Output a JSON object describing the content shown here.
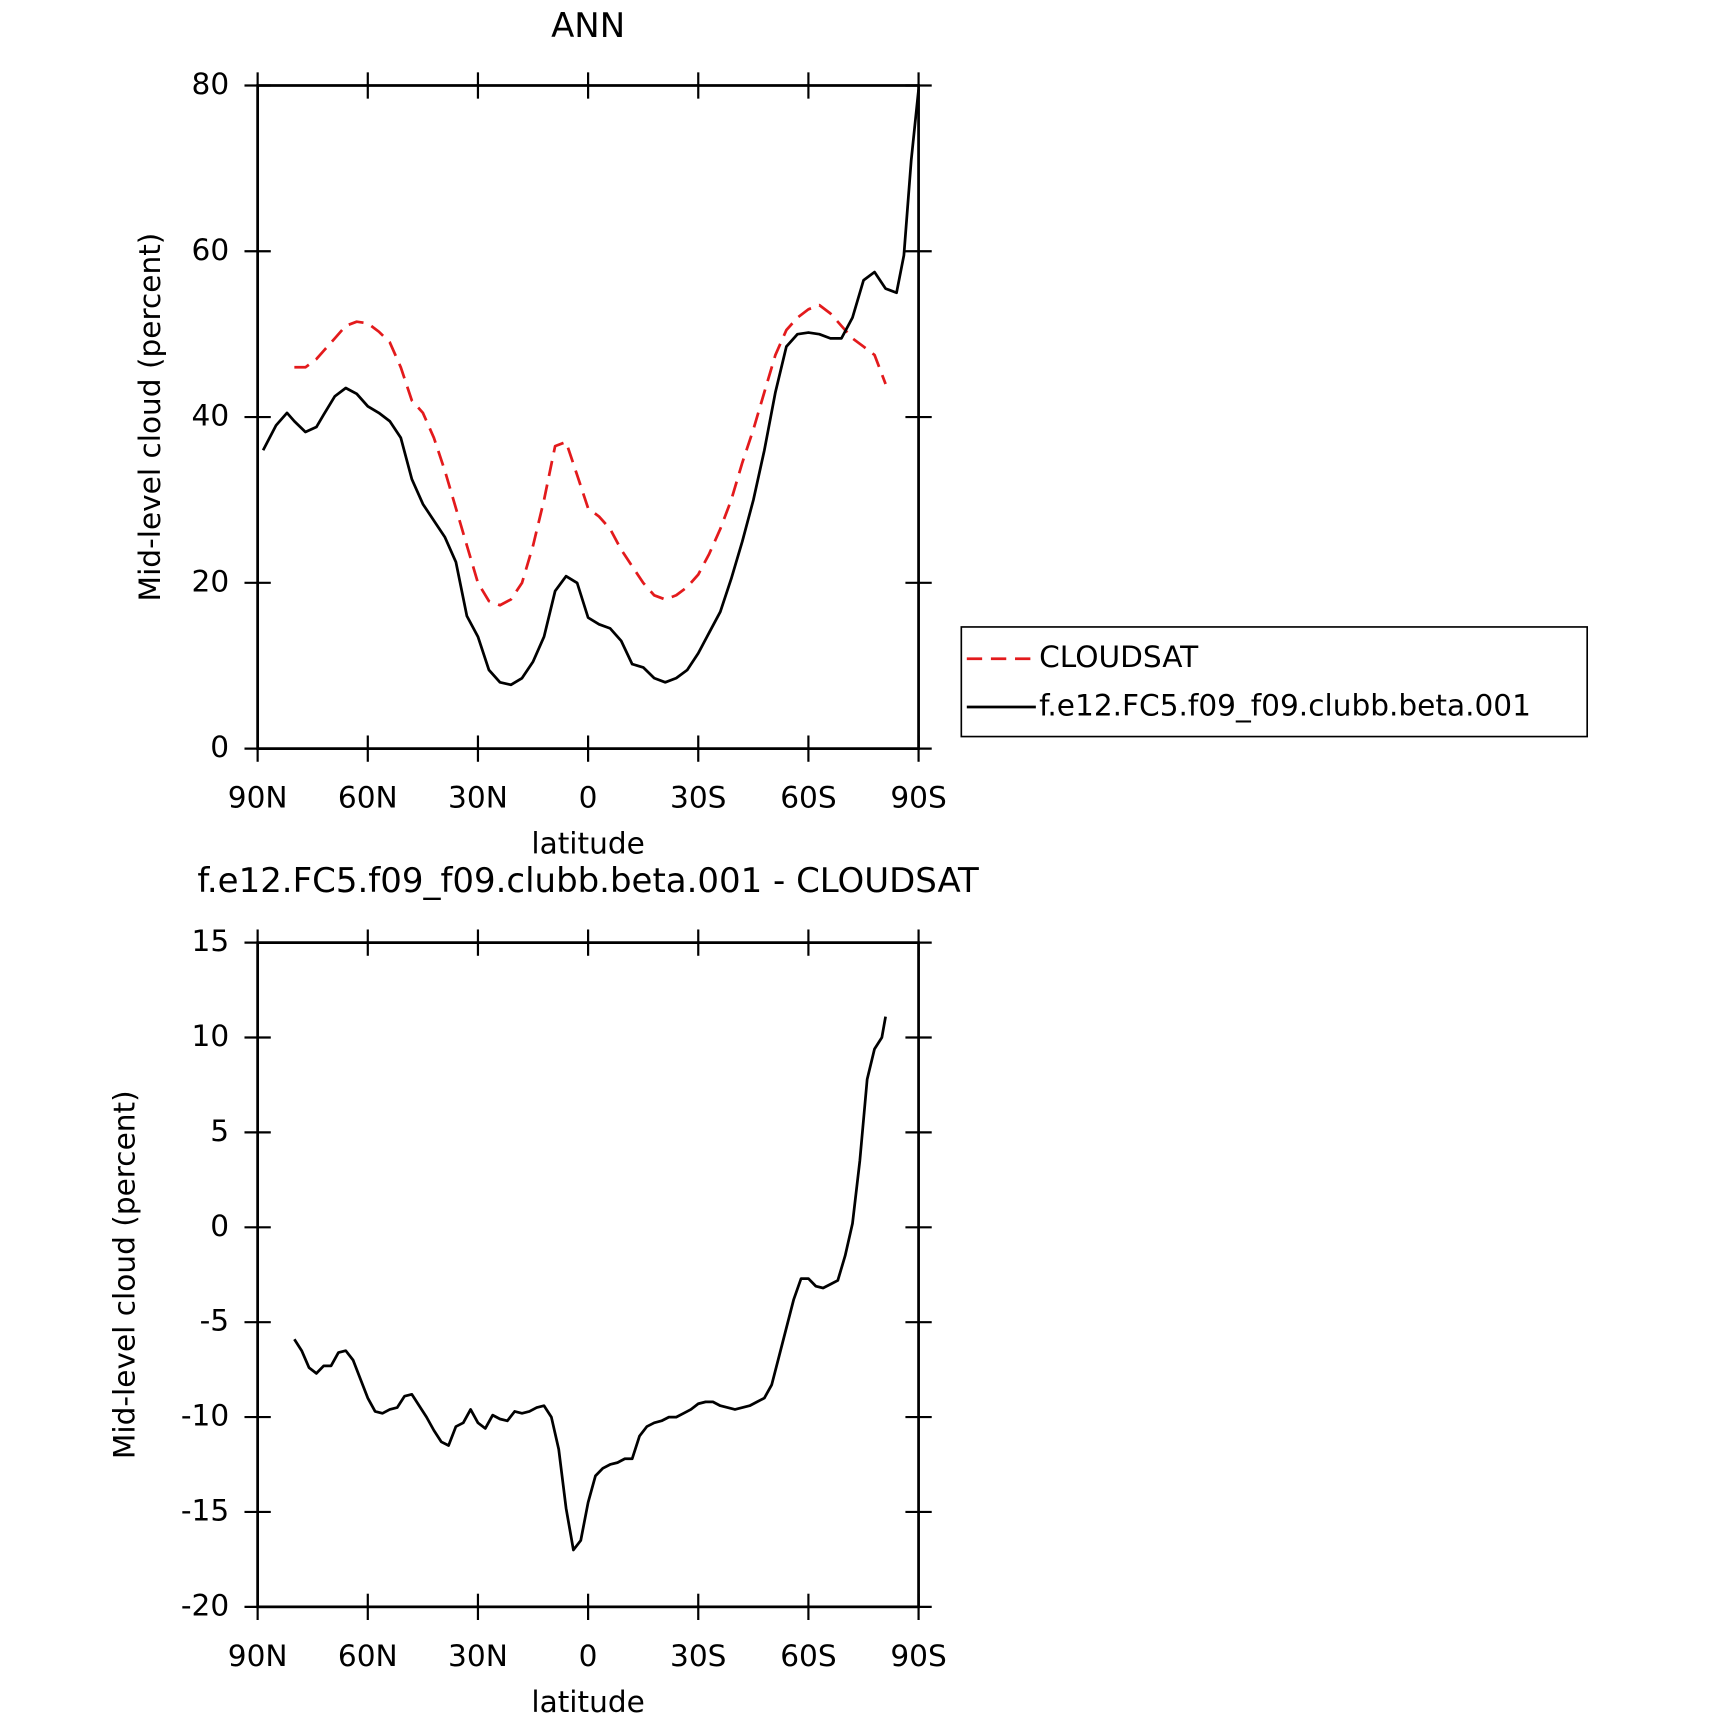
{
  "chart_data": [
    {
      "type": "line",
      "title": "ANN",
      "xlabel": "latitude",
      "ylabel": "Mid-level cloud (percent)",
      "x": [
        88.5,
        85,
        82,
        80,
        77,
        74,
        72,
        69,
        66,
        63,
        60,
        57,
        54,
        51,
        48,
        45,
        42,
        39,
        36,
        33,
        30,
        27,
        24,
        21,
        18,
        15,
        12,
        9,
        6,
        3,
        0,
        -3,
        -6,
        -9,
        -12,
        -15,
        -18,
        -21,
        -24,
        -27,
        -30,
        -33,
        -36,
        -39,
        -42,
        -45,
        -48,
        -51,
        -54,
        -57,
        -60,
        -63,
        -66,
        -69,
        -72,
        -75,
        -78,
        -81,
        -84,
        -86,
        -88,
        -90
      ],
      "series": [
        {
          "name": "CLOUDSAT",
          "color": "#e31a1c",
          "dashed": true,
          "values": [
            null,
            null,
            null,
            46,
            46,
            47,
            48,
            49.5,
            51,
            51.5,
            51.3,
            50.3,
            49,
            46,
            42,
            40.5,
            37.5,
            33.5,
            29,
            24.5,
            20,
            17.8,
            17.3,
            18,
            20,
            24.5,
            30,
            36.5,
            37,
            33,
            29,
            28,
            26.5,
            24,
            22,
            20,
            18.5,
            18,
            18.5,
            19.5,
            21,
            23.5,
            26.5,
            30,
            34.5,
            38.5,
            43,
            47.5,
            50.5,
            52,
            53,
            53.5,
            52.5,
            51,
            49.5,
            48.5,
            47.5,
            44,
            null,
            null,
            null,
            null
          ]
        },
        {
          "name": "f.e12.FC5.f09_f09.clubb.beta.001",
          "color": "#000000",
          "dashed": false,
          "values": [
            36,
            39,
            40.5,
            39.5,
            38.2,
            38.8,
            40.3,
            42.5,
            43.5,
            42.8,
            41.3,
            40.5,
            39.5,
            37.5,
            32.5,
            29.5,
            27.5,
            25.5,
            22.5,
            16,
            13.5,
            9.5,
            8,
            7.7,
            8.5,
            10.5,
            13.5,
            19,
            20.8,
            20,
            15.8,
            15,
            14.5,
            13,
            10.2,
            9.8,
            8.5,
            8,
            8.5,
            9.5,
            11.5,
            14,
            16.5,
            20.5,
            25,
            30,
            36,
            43,
            48.5,
            50,
            50.2,
            50,
            49.5,
            49.5,
            52,
            56.5,
            57.5,
            55.5,
            55,
            59.5,
            71,
            79.5
          ]
        }
      ],
      "xlim": [
        90,
        -90
      ],
      "xticks": [
        {
          "value": 90,
          "label": "90N"
        },
        {
          "value": 60,
          "label": "60N"
        },
        {
          "value": 30,
          "label": "30N"
        },
        0,
        {
          "value": -30,
          "label": "30S"
        },
        {
          "value": -60,
          "label": "60S"
        },
        {
          "value": -90,
          "label": "90S"
        }
      ],
      "ylim": [
        0,
        80
      ],
      "yticks": [
        0,
        20,
        40,
        60,
        80
      ],
      "legend": "right"
    },
    {
      "type": "line",
      "title": "f.e12.FC5.f09_f09.clubb.beta.001 - CLOUDSAT",
      "xlabel": "latitude",
      "ylabel": "Mid-level cloud (percent)",
      "x": [
        80,
        78,
        76,
        74,
        72,
        70,
        68,
        66,
        64,
        62,
        60,
        58,
        56,
        54,
        52,
        50,
        48,
        46,
        44,
        42,
        40,
        38,
        36,
        34,
        32,
        30,
        28,
        26,
        24,
        22,
        20,
        18,
        16,
        14,
        12,
        10,
        8,
        6,
        4,
        2,
        0,
        -2,
        -4,
        -6,
        -8,
        -10,
        -12,
        -14,
        -16,
        -18,
        -20,
        -22,
        -24,
        -26,
        -28,
        -30,
        -32,
        -34,
        -36,
        -38,
        -40,
        -42,
        -44,
        -46,
        -48,
        -50,
        -52,
        -54,
        -56,
        -58,
        -60,
        -62,
        -64,
        -66,
        -68,
        -70,
        -72,
        -74,
        -76,
        -78,
        -80,
        -81
      ],
      "series": [
        {
          "color": "#000000",
          "dashed": false,
          "values": [
            -5.9,
            -6.5,
            -7.4,
            -7.7,
            -7.3,
            -7.3,
            -6.6,
            -6.5,
            -7,
            -8,
            -9,
            -9.7,
            -9.8,
            -9.6,
            -9.5,
            -8.9,
            -8.8,
            -9.4,
            -10,
            -10.7,
            -11.3,
            -11.5,
            -10.5,
            -10.3,
            -9.6,
            -10.3,
            -10.6,
            -9.9,
            -10.1,
            -10.2,
            -9.7,
            -9.8,
            -9.7,
            -9.5,
            -9.4,
            -10,
            -11.7,
            -14.8,
            -17,
            -16.5,
            -14.5,
            -13.1,
            -12.7,
            -12.5,
            -12.4,
            -12.2,
            -12.2,
            -11,
            -10.5,
            -10.3,
            -10.2,
            -10,
            -10,
            -9.8,
            -9.6,
            -9.3,
            -9.2,
            -9.2,
            -9.4,
            -9.5,
            -9.6,
            -9.5,
            -9.4,
            -9.2,
            -9,
            -8.3,
            -6.8,
            -5.3,
            -3.8,
            -2.7,
            -2.7,
            -3.1,
            -3.2,
            -3,
            -2.8,
            -1.5,
            0.2,
            3.5,
            7.8,
            9.4,
            10,
            11.1
          ]
        }
      ],
      "xlim": [
        90,
        -90
      ],
      "xticks": [
        {
          "value": 90,
          "label": "90N"
        },
        {
          "value": 60,
          "label": "60N"
        },
        {
          "value": 30,
          "label": "30N"
        },
        0,
        {
          "value": -30,
          "label": "30S"
        },
        {
          "value": -60,
          "label": "60S"
        },
        {
          "value": -90,
          "label": "90S"
        }
      ],
      "ylim": [
        -20,
        15
      ],
      "yticks": [
        -20,
        -15,
        -10,
        -5,
        0,
        5,
        10,
        15
      ]
    }
  ]
}
